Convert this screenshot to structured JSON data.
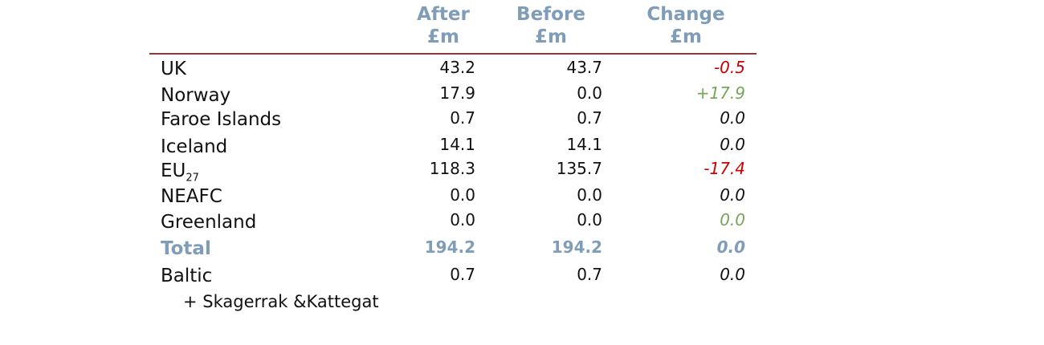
{
  "columns": [
    {
      "name": "After",
      "unit": "£m"
    },
    {
      "name": "Before",
      "unit": "£m"
    },
    {
      "name": "Change",
      "unit": "£m"
    }
  ],
  "rows": [
    {
      "label": "UK",
      "after": "43.2",
      "before": "43.7",
      "change": "-0.5",
      "change_color": "#cc0000"
    },
    {
      "label": "Norway",
      "after": "17.9",
      "before": "0.0",
      "change": "+17.9",
      "change_color": "#77a65a"
    },
    {
      "label": "Faroe Islands",
      "after": "0.7",
      "before": "0.7",
      "change": "0.0",
      "change_color": "#111111"
    },
    {
      "label": "Iceland",
      "after": "14.1",
      "before": "14.1",
      "change": "0.0",
      "change_color": "#111111"
    },
    {
      "label": "EU",
      "label_sub": "27",
      "after": "118.3",
      "before": "135.7",
      "change": "-17.4",
      "change_color": "#cc0000"
    },
    {
      "label": "NEAFC",
      "after": "0.0",
      "before": "0.0",
      "change": "0.0",
      "change_color": "#111111"
    },
    {
      "label": "Greenland",
      "after": "0.0",
      "before": "0.0",
      "change": "0.0",
      "change_color": "#77a65a"
    }
  ],
  "total": {
    "label": "Total",
    "after": "194.2",
    "before": "194.2",
    "change": "0.0",
    "color": "#7f9db9"
  },
  "extra": {
    "label": "Baltic",
    "label_line2": "+ Skagerrak &Kattegat",
    "after": "0.7",
    "before": "0.7",
    "change": "0.0"
  }
}
